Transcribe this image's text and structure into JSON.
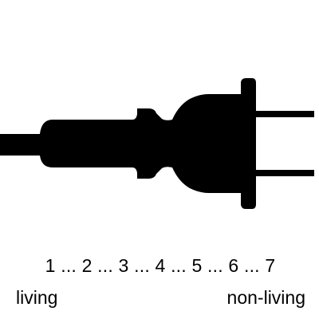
{
  "figure": {
    "icon": "electrical-plug-icon",
    "fill_color": "#000000",
    "background_color": "#ffffff"
  },
  "scale": {
    "points": [
      "1",
      "2",
      "3",
      "4",
      "5",
      "6",
      "7"
    ],
    "separator": " ... ",
    "left_label": "living",
    "right_label": "non-living"
  }
}
